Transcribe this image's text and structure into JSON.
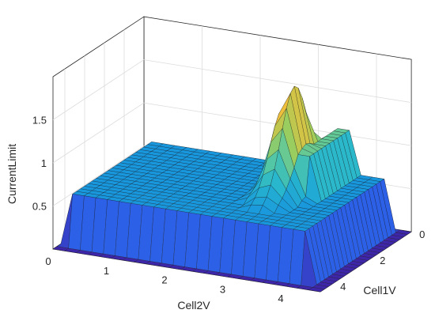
{
  "chart_data": {
    "type": "surface",
    "title": "",
    "xlabel": "Cell2V",
    "ylabel": "Cell1V",
    "zlabel": "CurrentLimit",
    "x_ticks": [
      "0",
      "1",
      "2",
      "3",
      "4"
    ],
    "y_ticks": [
      "0",
      "2",
      "4"
    ],
    "z_ticks": [
      "0.5",
      "1",
      "1.5"
    ],
    "xlim": [
      0,
      4.6
    ],
    "ylim": [
      0,
      4.6
    ],
    "zlim": [
      0,
      2.0
    ],
    "grid": true,
    "colormap": "parula",
    "surface": {
      "x": [
        0,
        0.2,
        0.4,
        0.6,
        0.8,
        1.0,
        1.2,
        1.4,
        1.6,
        1.8,
        2.0,
        2.2,
        2.4,
        2.6,
        2.8,
        3.0,
        3.2,
        3.4,
        3.6,
        3.8,
        4.0,
        4.2,
        4.4,
        4.6
      ],
      "y": [
        0,
        0.2,
        0.4,
        0.6,
        0.8,
        1.0,
        1.2,
        1.4,
        1.6,
        1.8,
        2.0,
        2.2,
        2.4,
        2.6,
        2.8,
        3.0,
        3.2,
        3.4,
        3.6,
        3.8,
        4.0,
        4.2,
        4.4,
        4.6
      ],
      "plateau_level": 0.6,
      "floor_level": 0.0,
      "plateau_x_range": [
        0.2,
        4.3
      ],
      "plateau_y_range": [
        0.2,
        4.2
      ],
      "peak": {
        "x": 3.15,
        "y": 1.8,
        "z": 1.85
      },
      "ridge": {
        "x": [
          3.4,
          3.7
        ],
        "y_range": [
          0.2,
          2.3
        ],
        "z": 1.1
      },
      "trough_y_max": 2.3
    }
  }
}
